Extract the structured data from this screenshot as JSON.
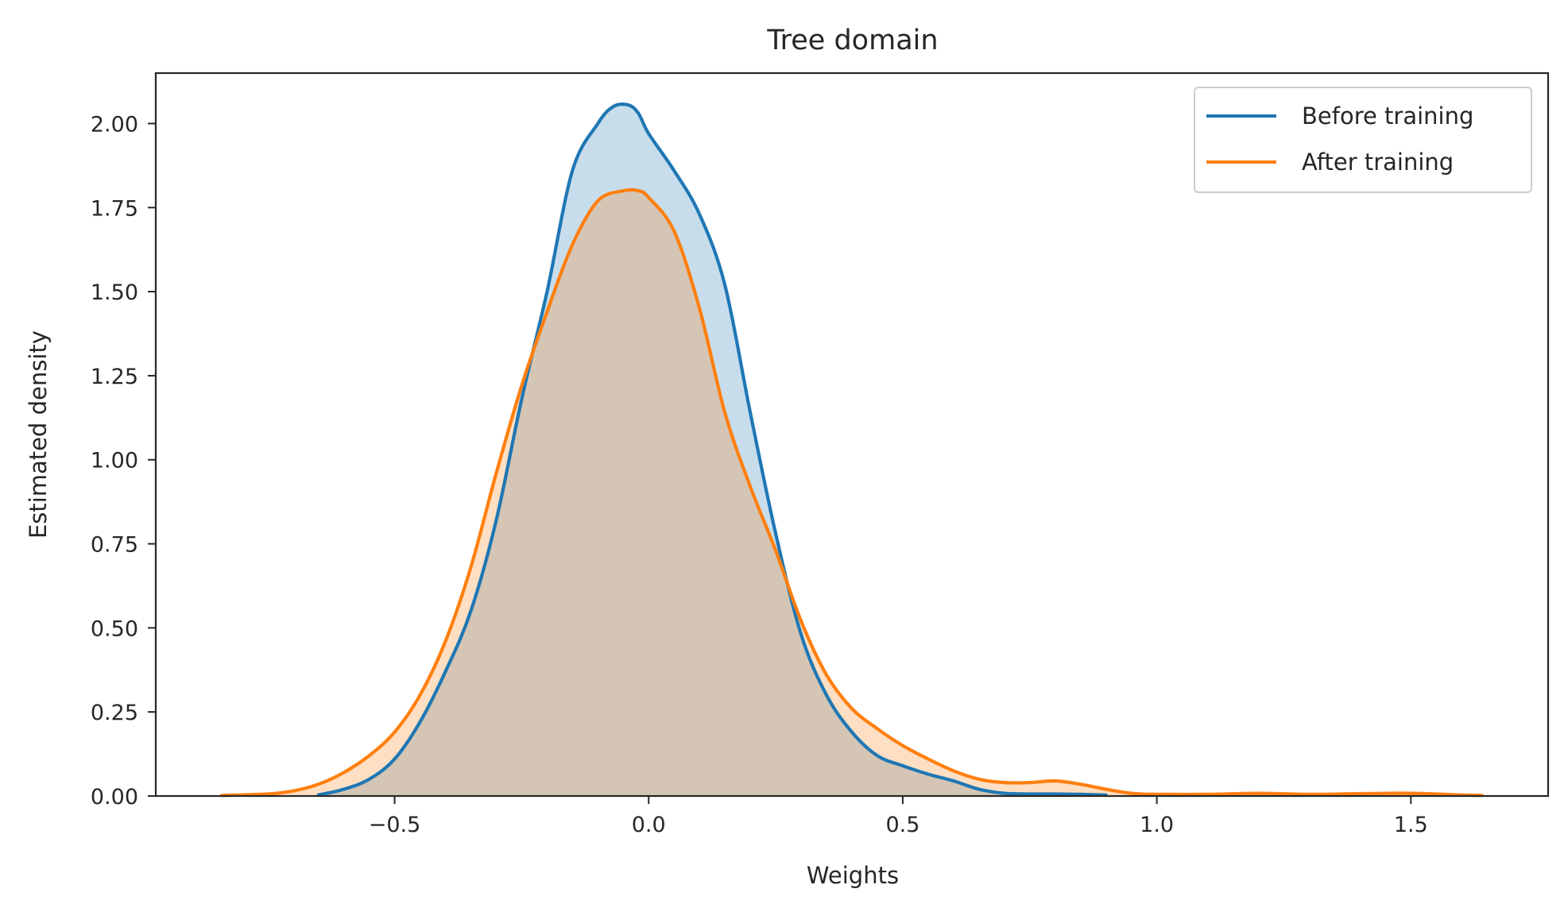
{
  "chart_data": {
    "type": "area",
    "title": "Tree domain",
    "xlabel": "Weights",
    "ylabel": "Estimated density",
    "xlim": [
      -0.97,
      1.77
    ],
    "ylim": [
      0,
      2.15
    ],
    "xticks": [
      -0.5,
      0.0,
      0.5,
      1.0,
      1.5
    ],
    "xtick_labels": [
      "−0.5",
      "0.0",
      "0.5",
      "1.0",
      "1.5"
    ],
    "yticks": [
      0,
      0.25,
      0.5,
      0.75,
      1.0,
      1.25,
      1.5,
      1.75,
      2.0
    ],
    "ytick_labels": [
      "0.00",
      "0.25",
      "0.50",
      "0.75",
      "1.00",
      "1.25",
      "1.50",
      "1.75",
      "2.00"
    ],
    "grid": false,
    "legend_position": "top-right",
    "series": [
      {
        "name": "Before training",
        "color": "#1f77b4",
        "fill": "rgba(31,119,180,0.25)",
        "x": [
          -0.65,
          -0.6,
          -0.55,
          -0.5,
          -0.45,
          -0.4,
          -0.35,
          -0.3,
          -0.25,
          -0.2,
          -0.15,
          -0.1,
          -0.07,
          -0.04,
          -0.02,
          0.0,
          0.05,
          0.1,
          0.15,
          0.2,
          0.25,
          0.3,
          0.35,
          0.4,
          0.45,
          0.5,
          0.55,
          0.6,
          0.65,
          0.7,
          0.75,
          0.8,
          0.85,
          0.9
        ],
        "y": [
          0.003,
          0.02,
          0.05,
          0.11,
          0.22,
          0.37,
          0.55,
          0.82,
          1.18,
          1.5,
          1.86,
          2.0,
          2.05,
          2.055,
          2.03,
          1.97,
          1.86,
          1.73,
          1.52,
          1.14,
          0.78,
          0.48,
          0.3,
          0.19,
          0.12,
          0.09,
          0.065,
          0.045,
          0.02,
          0.008,
          0.006,
          0.006,
          0.005,
          0.003
        ]
      },
      {
        "name": "After training",
        "color": "#ff7f0e",
        "fill": "rgba(255,127,14,0.25)",
        "x": [
          -0.84,
          -0.75,
          -0.7,
          -0.65,
          -0.6,
          -0.55,
          -0.5,
          -0.45,
          -0.4,
          -0.35,
          -0.3,
          -0.25,
          -0.2,
          -0.15,
          -0.1,
          -0.05,
          -0.02,
          0.0,
          0.05,
          0.1,
          0.15,
          0.2,
          0.25,
          0.3,
          0.35,
          0.4,
          0.45,
          0.5,
          0.55,
          0.6,
          0.65,
          0.7,
          0.75,
          0.8,
          0.85,
          0.9,
          0.95,
          1.0,
          1.1,
          1.2,
          1.3,
          1.4,
          1.5,
          1.6,
          1.64
        ],
        "y": [
          0.002,
          0.006,
          0.015,
          0.035,
          0.07,
          0.12,
          0.19,
          0.3,
          0.46,
          0.68,
          0.96,
          1.22,
          1.44,
          1.64,
          1.77,
          1.8,
          1.8,
          1.78,
          1.68,
          1.45,
          1.14,
          0.92,
          0.73,
          0.52,
          0.36,
          0.26,
          0.2,
          0.15,
          0.11,
          0.075,
          0.05,
          0.04,
          0.04,
          0.045,
          0.035,
          0.02,
          0.008,
          0.005,
          0.005,
          0.008,
          0.005,
          0.007,
          0.008,
          0.003,
          0.002
        ]
      }
    ]
  }
}
